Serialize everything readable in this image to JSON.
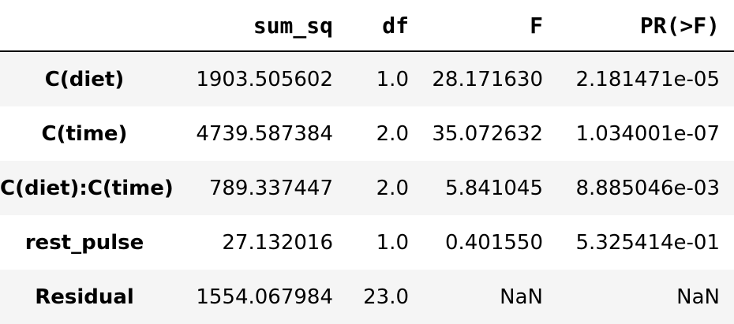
{
  "table": {
    "columns": [
      "sum_sq",
      "df",
      "F",
      "PR(>F)"
    ],
    "rows": [
      {
        "index": "C(diet)",
        "cells": [
          "1903.505602",
          "1.0",
          "28.171630",
          "2.181471e-05"
        ]
      },
      {
        "index": "C(time)",
        "cells": [
          "4739.587384",
          "2.0",
          "35.072632",
          "1.034001e-07"
        ]
      },
      {
        "index": "C(diet):C(time)",
        "cells": [
          "789.337447",
          "2.0",
          "5.841045",
          "8.885046e-03"
        ]
      },
      {
        "index": "rest_pulse",
        "cells": [
          "27.132016",
          "1.0",
          "0.401550",
          "5.325414e-01"
        ]
      },
      {
        "index": "Residual",
        "cells": [
          "1554.067984",
          "23.0",
          "NaN",
          "NaN"
        ]
      }
    ]
  }
}
